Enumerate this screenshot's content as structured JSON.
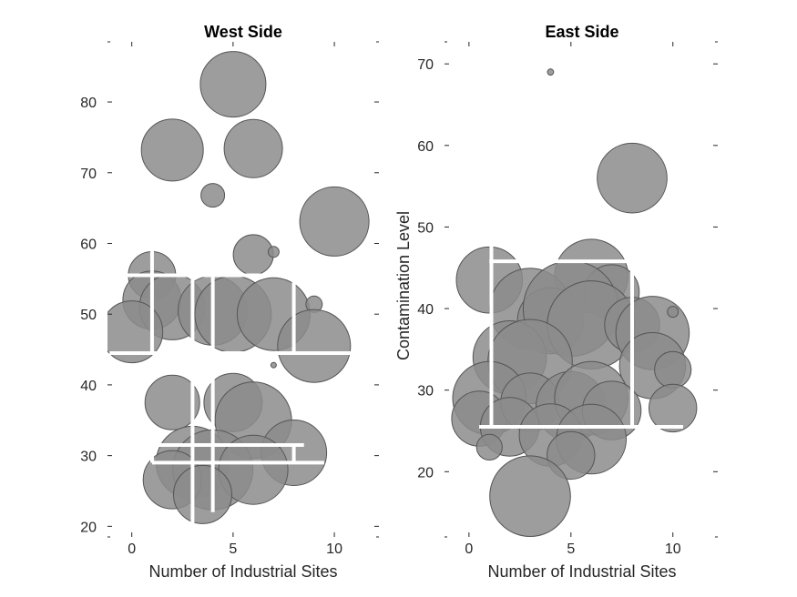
{
  "chart_data": [
    {
      "type": "scatter",
      "title": "West Side",
      "xlabel": "Number of Industrial Sites",
      "ylabel": "",
      "xlim": [
        -1.2,
        12.2
      ],
      "ylim": [
        18.5,
        88.5
      ],
      "xticks": [
        0,
        5,
        10
      ],
      "yticks": [
        20,
        30,
        40,
        50,
        60,
        70,
        80
      ],
      "grid": false,
      "series": [
        {
          "points": [
            {
              "x": 5.0,
              "y": 82.5,
              "r": 1.8
            },
            {
              "x": 2.0,
              "y": 73.2,
              "r": 1.7
            },
            {
              "x": 6.0,
              "y": 73.4,
              "r": 1.6
            },
            {
              "x": 4.0,
              "y": 66.8,
              "r": 0.65
            },
            {
              "x": 10.0,
              "y": 63.1,
              "r": 1.9
            },
            {
              "x": 6.0,
              "y": 58.4,
              "r": 1.1
            },
            {
              "x": 7.0,
              "y": 58.8,
              "r": 0.3
            },
            {
              "x": 1.0,
              "y": 55.5,
              "r": 1.3
            },
            {
              "x": 1.0,
              "y": 52.0,
              "r": 1.6
            },
            {
              "x": 2.0,
              "y": 51.0,
              "r": 1.8
            },
            {
              "x": 4.0,
              "y": 50.5,
              "r": 1.9
            },
            {
              "x": 5.0,
              "y": 50.0,
              "r": 2.1
            },
            {
              "x": 7.0,
              "y": 50.0,
              "r": 2.0
            },
            {
              "x": 9.0,
              "y": 51.4,
              "r": 0.45
            },
            {
              "x": 0.0,
              "y": 47.5,
              "r": 1.7
            },
            {
              "x": 9.0,
              "y": 45.5,
              "r": 2.0
            },
            {
              "x": 7.0,
              "y": 42.8,
              "r": 0.15
            },
            {
              "x": 2.0,
              "y": 37.5,
              "r": 1.5
            },
            {
              "x": 5.0,
              "y": 37.5,
              "r": 1.6
            },
            {
              "x": 6.0,
              "y": 35.0,
              "r": 2.1
            },
            {
              "x": 8.0,
              "y": 30.4,
              "r": 1.8
            },
            {
              "x": 3.0,
              "y": 29.0,
              "r": 2.0
            },
            {
              "x": 4.0,
              "y": 28.0,
              "r": 2.2
            },
            {
              "x": 6.0,
              "y": 28.0,
              "r": 1.9
            },
            {
              "x": 2.0,
              "y": 26.6,
              "r": 1.6
            },
            {
              "x": 3.5,
              "y": 24.5,
              "r": 1.6
            }
          ]
        }
      ]
    },
    {
      "type": "scatter",
      "title": "East Side",
      "xlabel": "Number of Industrial Sites",
      "ylabel": "Contamination Level",
      "xlim": [
        -1.2,
        12.2
      ],
      "ylim": [
        12,
        72.7
      ],
      "xticks": [
        0,
        5,
        10
      ],
      "yticks": [
        20,
        30,
        40,
        50,
        60,
        70
      ],
      "grid": false,
      "series": [
        {
          "points": [
            {
              "x": 4.0,
              "y": 69.0,
              "r": 0.17
            },
            {
              "x": 8.0,
              "y": 56.0,
              "r": 1.9
            },
            {
              "x": 1.0,
              "y": 43.5,
              "r": 1.8
            },
            {
              "x": 6.0,
              "y": 44.0,
              "r": 2.0
            },
            {
              "x": 7.0,
              "y": 42.0,
              "r": 1.5
            },
            {
              "x": 3.0,
              "y": 40.0,
              "r": 2.2
            },
            {
              "x": 4.0,
              "y": 38.5,
              "r": 1.8
            },
            {
              "x": 5.0,
              "y": 40.0,
              "r": 2.6
            },
            {
              "x": 6.0,
              "y": 38.0,
              "r": 2.4
            },
            {
              "x": 8.0,
              "y": 38.0,
              "r": 1.5
            },
            {
              "x": 9.0,
              "y": 37.0,
              "r": 2.0
            },
            {
              "x": 10.0,
              "y": 39.6,
              "r": 0.3
            },
            {
              "x": 2.0,
              "y": 34.0,
              "r": 2.0
            },
            {
              "x": 3.0,
              "y": 33.5,
              "r": 2.3
            },
            {
              "x": 9.0,
              "y": 33.0,
              "r": 1.8
            },
            {
              "x": 10.0,
              "y": 32.5,
              "r": 1.0
            },
            {
              "x": 1.0,
              "y": 29.0,
              "r": 2.0
            },
            {
              "x": 0.5,
              "y": 26.5,
              "r": 1.5
            },
            {
              "x": 3.0,
              "y": 28.5,
              "r": 1.6
            },
            {
              "x": 5.0,
              "y": 28.0,
              "r": 1.9
            },
            {
              "x": 6.0,
              "y": 29.0,
              "r": 2.0
            },
            {
              "x": 7.0,
              "y": 27.5,
              "r": 1.6
            },
            {
              "x": 10.0,
              "y": 27.8,
              "r": 1.3
            },
            {
              "x": 2.0,
              "y": 25.5,
              "r": 1.6
            },
            {
              "x": 4.0,
              "y": 24.5,
              "r": 1.7
            },
            {
              "x": 6.0,
              "y": 24.0,
              "r": 1.9
            },
            {
              "x": 5.0,
              "y": 22.0,
              "r": 1.3
            },
            {
              "x": 1.0,
              "y": 23.0,
              "r": 0.7
            },
            {
              "x": 3.0,
              "y": 17.0,
              "r": 2.2
            }
          ]
        }
      ]
    }
  ]
}
